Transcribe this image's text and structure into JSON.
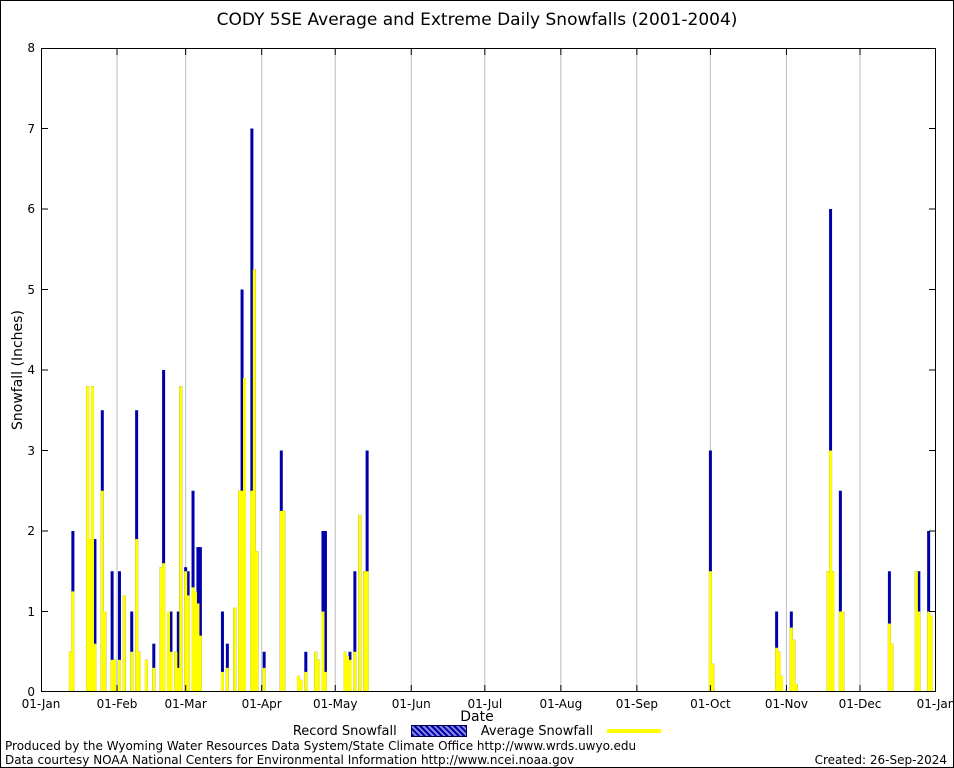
{
  "colors": {
    "record": "#0000aa",
    "average": "#ffff00",
    "grid": "#bebebe",
    "frame": "#000000"
  },
  "chart_data": {
    "type": "bar",
    "title": "CODY 5SE Average and Extreme Daily Snowfalls (2001-2004)",
    "xlabel": "Date",
    "ylabel": "Snowfall (Inches)",
    "ylim": [
      0,
      8
    ],
    "yticks": [
      0,
      1,
      2,
      3,
      4,
      5,
      6,
      7,
      8
    ],
    "xticks": [
      "01-Jan",
      "01-Feb",
      "01-Mar",
      "01-Apr",
      "01-May",
      "01-Jun",
      "01-Jul",
      "01-Aug",
      "01-Sep",
      "01-Oct",
      "01-Nov",
      "01-Dec",
      "01-Jan"
    ],
    "xtick_days": [
      1,
      32,
      60,
      91,
      121,
      152,
      182,
      213,
      244,
      274,
      305,
      335,
      366
    ],
    "grid": "vertical-month-lines",
    "legend_position": "bottom-center",
    "legend": [
      {
        "label": "Record Snowfall",
        "color": "#0000aa",
        "style": "hatched-box"
      },
      {
        "label": "Average Snowfall",
        "color": "#ffff00",
        "style": "line"
      }
    ],
    "bars": [
      {
        "day": 13,
        "record": 0.5,
        "average": 0.5
      },
      {
        "day": 14,
        "record": 2.0,
        "average": 1.25
      },
      {
        "day": 20,
        "record": 3.8,
        "average": 3.8
      },
      {
        "day": 21,
        "record": 1.9,
        "average": 1.9
      },
      {
        "day": 22,
        "record": 3.8,
        "average": 3.8
      },
      {
        "day": 23,
        "record": 1.9,
        "average": 0.6
      },
      {
        "day": 26,
        "record": 3.5,
        "average": 2.5
      },
      {
        "day": 27,
        "record": 1.0,
        "average": 1.0
      },
      {
        "day": 30,
        "record": 1.5,
        "average": 0.4
      },
      {
        "day": 31,
        "record": 0.4,
        "average": 0.4
      },
      {
        "day": 33,
        "record": 1.5,
        "average": 0.4
      },
      {
        "day": 35,
        "record": 1.2,
        "average": 1.2
      },
      {
        "day": 38,
        "record": 1.0,
        "average": 0.5
      },
      {
        "day": 40,
        "record": 3.5,
        "average": 1.9
      },
      {
        "day": 41,
        "record": 0.5,
        "average": 0.5
      },
      {
        "day": 44,
        "record": 0.4,
        "average": 0.4
      },
      {
        "day": 47,
        "record": 0.6,
        "average": 0.3
      },
      {
        "day": 50,
        "record": 1.55,
        "average": 1.55
      },
      {
        "day": 51,
        "record": 4.0,
        "average": 1.6
      },
      {
        "day": 53,
        "record": 1.0,
        "average": 1.0
      },
      {
        "day": 54,
        "record": 1.0,
        "average": 0.5
      },
      {
        "day": 56,
        "record": 0.5,
        "average": 0.5
      },
      {
        "day": 57,
        "record": 1.0,
        "average": 0.3
      },
      {
        "day": 58,
        "record": 3.8,
        "average": 3.8
      },
      {
        "day": 60,
        "record": 1.55,
        "average": 1.5
      },
      {
        "day": 61,
        "record": 1.5,
        "average": 1.2
      },
      {
        "day": 63,
        "record": 2.5,
        "average": 1.3
      },
      {
        "day": 64,
        "record": 1.25,
        "average": 1.25
      },
      {
        "day": 65,
        "record": 1.8,
        "average": 1.1
      },
      {
        "day": 66,
        "record": 1.8,
        "average": 0.7
      },
      {
        "day": 75,
        "record": 1.0,
        "average": 0.25
      },
      {
        "day": 77,
        "record": 0.6,
        "average": 0.3
      },
      {
        "day": 80,
        "record": 1.05,
        "average": 1.05
      },
      {
        "day": 82,
        "record": 2.5,
        "average": 2.5
      },
      {
        "day": 83,
        "record": 5.0,
        "average": 2.5
      },
      {
        "day": 84,
        "record": 3.9,
        "average": 3.9
      },
      {
        "day": 87,
        "record": 7.0,
        "average": 2.5
      },
      {
        "day": 88,
        "record": 5.25,
        "average": 5.25
      },
      {
        "day": 89,
        "record": 1.75,
        "average": 1.75
      },
      {
        "day": 92,
        "record": 0.5,
        "average": 0.3
      },
      {
        "day": 99,
        "record": 3.0,
        "average": 2.25
      },
      {
        "day": 100,
        "record": 2.25,
        "average": 2.25
      },
      {
        "day": 106,
        "record": 0.2,
        "average": 0.2
      },
      {
        "day": 107,
        "record": 0.15,
        "average": 0.15
      },
      {
        "day": 109,
        "record": 0.5,
        "average": 0.25
      },
      {
        "day": 113,
        "record": 0.5,
        "average": 0.5
      },
      {
        "day": 114,
        "record": 0.4,
        "average": 0.4
      },
      {
        "day": 116,
        "record": 2.0,
        "average": 1.0
      },
      {
        "day": 117,
        "record": 2.0,
        "average": 0.25
      },
      {
        "day": 125,
        "record": 0.5,
        "average": 0.5
      },
      {
        "day": 126,
        "record": 0.45,
        "average": 0.45
      },
      {
        "day": 127,
        "record": 0.5,
        "average": 0.4
      },
      {
        "day": 129,
        "record": 1.5,
        "average": 0.5
      },
      {
        "day": 131,
        "record": 2.2,
        "average": 2.2
      },
      {
        "day": 133,
        "record": 1.5,
        "average": 1.5
      },
      {
        "day": 134,
        "record": 3.0,
        "average": 1.5
      },
      {
        "day": 274,
        "record": 3.0,
        "average": 1.5
      },
      {
        "day": 275,
        "record": 0.35,
        "average": 0.35
      },
      {
        "day": 301,
        "record": 1.0,
        "average": 0.55
      },
      {
        "day": 302,
        "record": 0.5,
        "average": 0.5
      },
      {
        "day": 303,
        "record": 0.2,
        "average": 0.2
      },
      {
        "day": 307,
        "record": 1.0,
        "average": 0.8
      },
      {
        "day": 308,
        "record": 0.65,
        "average": 0.65
      },
      {
        "day": 309,
        "record": 0.1,
        "average": 0.1
      },
      {
        "day": 322,
        "record": 1.5,
        "average": 1.5
      },
      {
        "day": 323,
        "record": 6.0,
        "average": 3.0
      },
      {
        "day": 324,
        "record": 1.5,
        "average": 1.5
      },
      {
        "day": 327,
        "record": 2.5,
        "average": 1.0
      },
      {
        "day": 328,
        "record": 1.0,
        "average": 1.0
      },
      {
        "day": 347,
        "record": 1.5,
        "average": 0.85
      },
      {
        "day": 348,
        "record": 0.6,
        "average": 0.6
      },
      {
        "day": 358,
        "record": 1.5,
        "average": 1.5
      },
      {
        "day": 359,
        "record": 1.5,
        "average": 1.0
      },
      {
        "day": 363,
        "record": 2.0,
        "average": 1.0
      },
      {
        "day": 364,
        "record": 0.95,
        "average": 0.95
      }
    ]
  },
  "footer": {
    "line1": "Produced by the Wyoming Water Resources Data System/State Climate Office http://www.wrds.uwyo.edu",
    "line2": "Data courtesy NOAA National Centers for Environmental Information http://www.ncei.noaa.gov",
    "created": "Created: 26-Sep-2024"
  }
}
